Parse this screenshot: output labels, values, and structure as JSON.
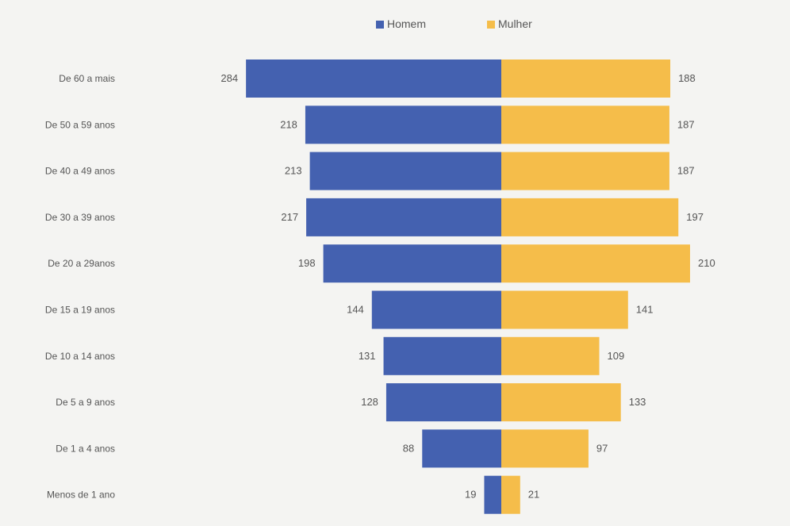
{
  "chart_data": {
    "type": "bar",
    "orientation": "horizontal-diverging",
    "title": "",
    "xlabel": "",
    "ylabel": "",
    "categories": [
      "De 60 a mais",
      "De 50 a 59 anos",
      "De 40 a 49 anos",
      "De 30 a 39 anos",
      "De 20 a 29anos",
      "De 15 a 19 anos",
      "De 10 a 14 anos",
      "De 5 a 9 anos",
      "De 1 a 4 anos",
      "Menos de 1 ano"
    ],
    "series": [
      {
        "name": "Homem",
        "color": "#4461b0",
        "side": "left",
        "values": [
          284,
          218,
          213,
          217,
          198,
          144,
          131,
          128,
          88,
          19
        ]
      },
      {
        "name": "Mulher",
        "color": "#f5bd4a",
        "side": "right",
        "values": [
          188,
          187,
          187,
          197,
          210,
          141,
          109,
          133,
          97,
          21
        ]
      }
    ],
    "xlim": [
      0,
      300
    ],
    "grid": false,
    "legend_position": "top-center"
  }
}
